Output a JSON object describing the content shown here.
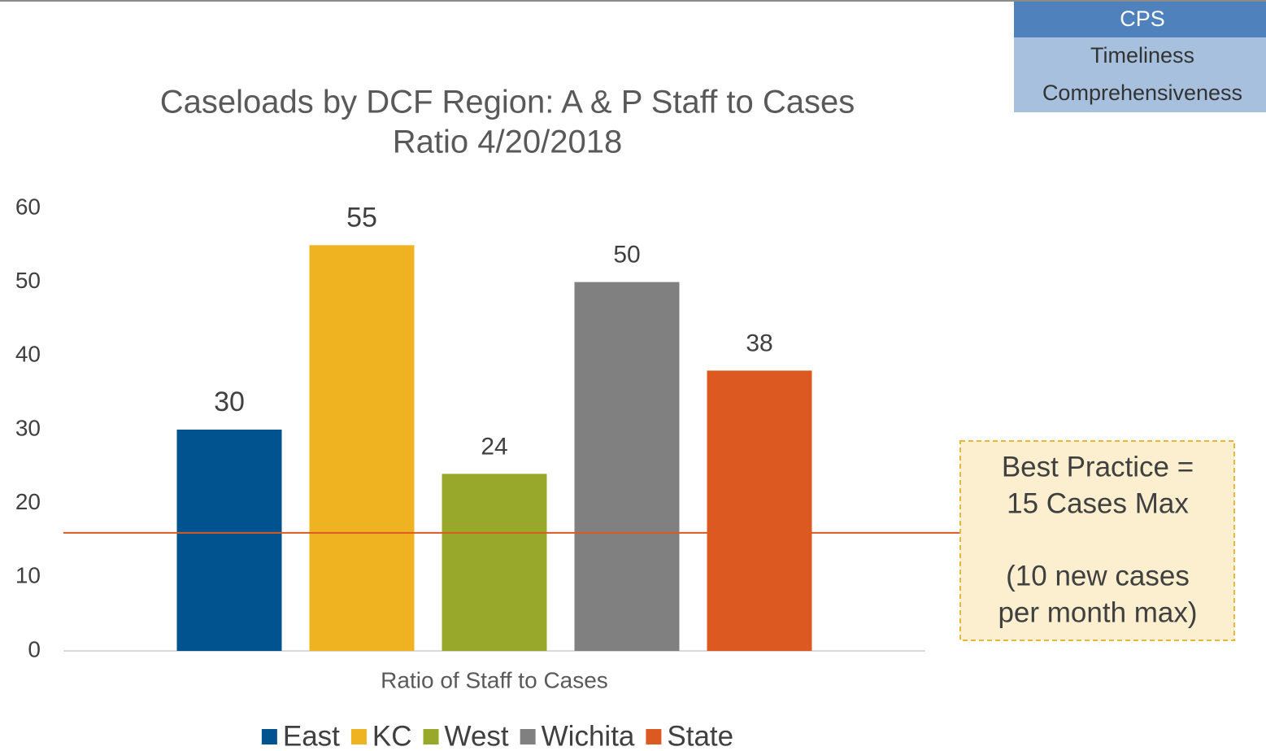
{
  "nav": {
    "items": [
      "CPS",
      "Timeliness",
      "Comprehensiveness"
    ]
  },
  "chart_data": {
    "type": "bar",
    "title": [
      "Caseloads by DCF Region: A & P Staff to Cases",
      "Ratio 4/20/2018"
    ],
    "categories": [
      "Ratio of Staff to Cases"
    ],
    "series": [
      {
        "name": "East",
        "color": "#00538f",
        "values": [
          30
        ]
      },
      {
        "name": "KC",
        "color": "#efb321",
        "values": [
          55
        ]
      },
      {
        "name": "West",
        "color": "#97a82a",
        "values": [
          24
        ]
      },
      {
        "name": "Wichita",
        "color": "#808080",
        "values": [
          50
        ]
      },
      {
        "name": "State",
        "color": "#dc5a21",
        "values": [
          38
        ]
      }
    ],
    "ylim": [
      0,
      60
    ],
    "yticks": [
      0,
      10,
      20,
      30,
      40,
      50,
      60
    ],
    "reference_line": {
      "value": 16,
      "color": "#dc5a21"
    },
    "annotation": [
      [
        "Best Practice =",
        "15 Cases Max"
      ],
      [
        "(10 new cases",
        "per month max)"
      ]
    ],
    "legend": "bottom"
  }
}
